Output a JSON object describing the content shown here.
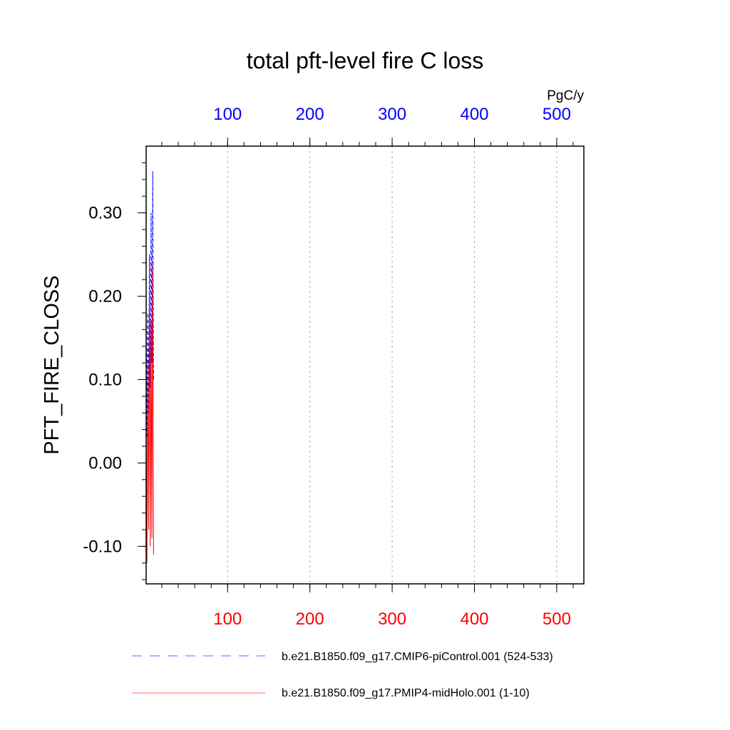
{
  "chart_data": {
    "type": "line",
    "title": "total pft-level fire C loss",
    "ylabel": "PFT_FIRE_CLOSS",
    "top_axis_unit": "PgC/y",
    "xlim": [
      1,
      533
    ],
    "ylim": [
      -0.145,
      0.38
    ],
    "y_ticks": [
      -0.1,
      0.0,
      0.1,
      0.2,
      0.3
    ],
    "y_tick_labels": [
      "-0.10",
      "0.00",
      "0.10",
      "0.20",
      "0.30"
    ],
    "bottom_x_ticks": [
      100,
      200,
      300,
      400,
      500
    ],
    "bottom_x_tick_labels": [
      "100",
      "200",
      "300",
      "400",
      "500"
    ],
    "top_x_ticks": [
      100,
      200,
      300,
      400,
      500
    ],
    "top_x_tick_labels": [
      "100",
      "200",
      "300",
      "400",
      "500"
    ],
    "grid": "vertical dashed",
    "legend_placement": "bottom",
    "series": [
      {
        "name": "b.e21.B1850.f09_g17.CMIP6-piControl.001 (524-533)",
        "color": "#0000ff",
        "style": "dashed",
        "x": [
          1,
          2,
          3,
          4,
          5,
          6,
          7,
          8,
          9,
          10
        ],
        "values": [
          0.2,
          0.03,
          0.18,
          0.06,
          0.25,
          0.09,
          0.3,
          0.12,
          0.35,
          0.1
        ]
      },
      {
        "name": "b.e21.B1850.f09_g17.PMIP4-midHolo.001 (1-10)",
        "color": "#ff0000",
        "style": "solid",
        "x": [
          1,
          2,
          3,
          4,
          5,
          6,
          7,
          8,
          9,
          10
        ],
        "values": [
          0.05,
          -0.12,
          0.12,
          -0.08,
          0.2,
          -0.1,
          0.17,
          -0.09,
          0.24,
          -0.11
        ]
      }
    ]
  },
  "colors": {
    "bottom_axis_labels": "#ff0000",
    "top_axis_labels": "#0000ff",
    "axes": "#000000",
    "grid": "#b0b0b0"
  }
}
